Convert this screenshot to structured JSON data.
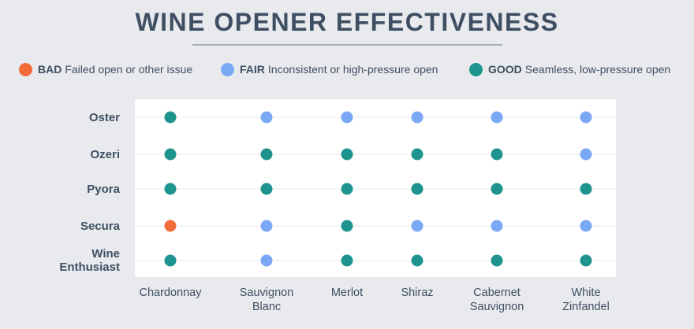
{
  "title": "WINE OPENER EFFECTIVENESS",
  "legend": [
    {
      "key": "BAD",
      "text": "Failed open or other issue",
      "color": "#f26b3a"
    },
    {
      "key": "FAIR",
      "text": "Inconsistent or high-pressure open",
      "color": "#7aa8f5"
    },
    {
      "key": "GOOD",
      "text": "Seamless, low-pressure open",
      "color": "#1f948e"
    }
  ],
  "chart_data": {
    "type": "scatter",
    "title": "WINE OPENER EFFECTIVENESS",
    "rows": [
      [
        "Oster"
      ],
      [
        "Ozeri"
      ],
      [
        "Pyora"
      ],
      [
        "Secura"
      ],
      [
        "Wine",
        "Enthusiast"
      ]
    ],
    "columns": [
      [
        "Chardonnay"
      ],
      [
        "Sauvignon",
        "Blanc"
      ],
      [
        "Merlot"
      ],
      [
        "Shiraz"
      ],
      [
        "Cabernet",
        "Sauvignon"
      ],
      [
        "White",
        "Zinfandel"
      ]
    ],
    "ratings": [
      [
        "GOOD",
        "FAIR",
        "FAIR",
        "FAIR",
        "FAIR",
        "FAIR"
      ],
      [
        "GOOD",
        "GOOD",
        "GOOD",
        "GOOD",
        "GOOD",
        "FAIR"
      ],
      [
        "GOOD",
        "GOOD",
        "GOOD",
        "GOOD",
        "GOOD",
        "GOOD"
      ],
      [
        "BAD",
        "FAIR",
        "GOOD",
        "FAIR",
        "FAIR",
        "FAIR"
      ],
      [
        "GOOD",
        "FAIR",
        "GOOD",
        "GOOD",
        "GOOD",
        "GOOD"
      ]
    ],
    "colors": {
      "BAD": "#f26b3a",
      "FAIR": "#7aa8f5",
      "GOOD": "#1f948e"
    },
    "gridlines": "horizontal",
    "legend_placement": "top"
  }
}
